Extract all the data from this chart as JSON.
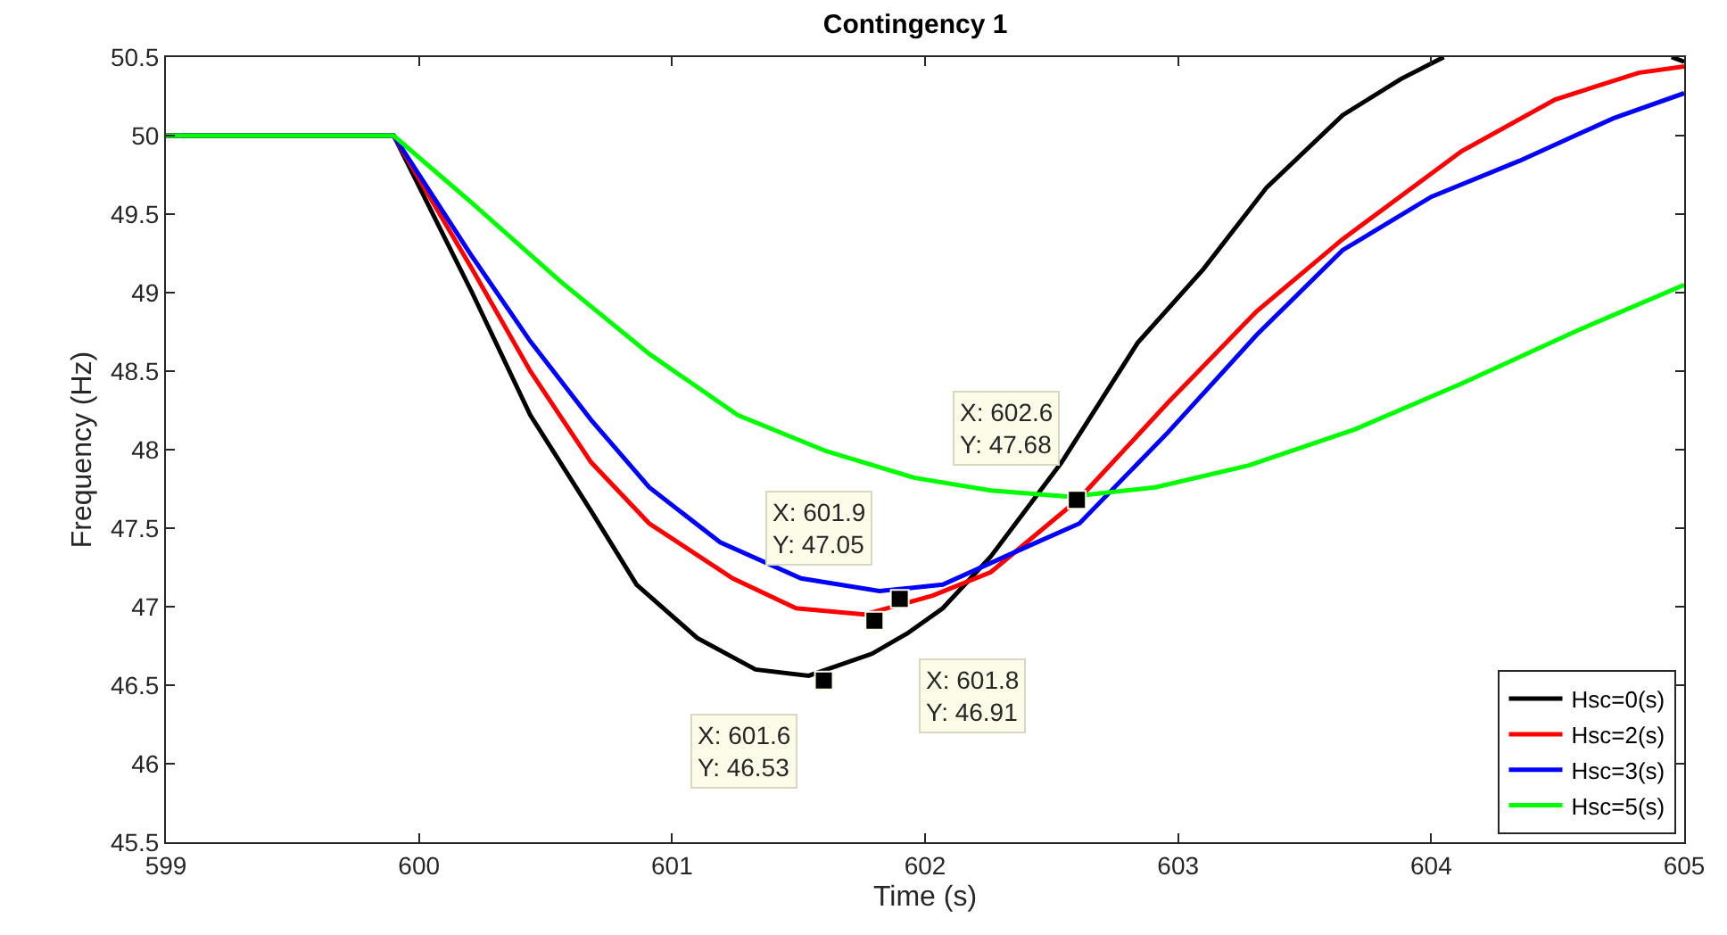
{
  "chart_data": {
    "type": "line",
    "title": "Contingency 1",
    "xlabel": "Time (s)",
    "ylabel": "Frequency (Hz)",
    "xlim": [
      599,
      605
    ],
    "xticks": [
      599,
      600,
      601,
      602,
      603,
      604,
      605
    ],
    "ylim": [
      45.5,
      50.5
    ],
    "yticks": [
      45.5,
      46,
      46.5,
      47,
      47.5,
      48,
      48.5,
      49,
      49.5,
      50,
      50.5
    ],
    "grid": false,
    "legend": "bottom right",
    "marker": "none",
    "line_style": "solid",
    "series": [
      {
        "name": "Hsc=0(s)",
        "color": "#000000",
        "x": [
          599,
          599.9,
          600.21,
          600.44,
          600.68,
          600.86,
          601.1,
          601.33,
          601.54,
          601.79,
          601.93,
          602.07,
          602.26,
          602.54,
          602.84,
          603.1,
          603.35,
          603.65,
          603.88,
          604.05,
          604.5,
          604.95,
          605
        ],
        "values": [
          50,
          50,
          49.0,
          48.22,
          47.61,
          47.14,
          46.8,
          46.6,
          46.56,
          46.7,
          46.83,
          46.99,
          47.32,
          47.92,
          48.68,
          49.15,
          49.67,
          50.13,
          50.36,
          50.5,
          null,
          50.5,
          50.47
        ]
      },
      {
        "name": "Hsc=2(s)",
        "color": "#ff0000",
        "x": [
          599,
          599.9,
          600.21,
          600.44,
          600.68,
          600.91,
          601.24,
          601.49,
          601.76,
          602.03,
          602.26,
          602.61,
          602.96,
          603.31,
          603.65,
          604.12,
          604.49,
          604.82,
          605
        ],
        "values": [
          50,
          50,
          49.15,
          48.5,
          47.92,
          47.53,
          47.18,
          46.99,
          46.95,
          47.07,
          47.22,
          47.69,
          48.3,
          48.88,
          49.34,
          49.9,
          50.23,
          50.4,
          50.44
        ]
      },
      {
        "name": "Hsc=3(s)",
        "color": "#0000ff",
        "x": [
          599,
          599.9,
          600.21,
          600.44,
          600.68,
          600.91,
          601.19,
          601.51,
          601.82,
          602.07,
          602.4,
          602.61,
          602.96,
          603.31,
          603.65,
          604.0,
          604.35,
          604.72,
          605
        ],
        "values": [
          50,
          50,
          49.23,
          48.69,
          48.19,
          47.76,
          47.41,
          47.18,
          47.1,
          47.14,
          47.38,
          47.53,
          48.11,
          48.73,
          49.27,
          49.61,
          49.84,
          50.11,
          50.27
        ]
      },
      {
        "name": "Hsc=5(s)",
        "color": "#00ff00",
        "x": [
          599,
          599.9,
          600.21,
          600.56,
          600.91,
          601.26,
          601.61,
          601.96,
          602.26,
          602.57,
          602.91,
          603.28,
          603.7,
          604.12,
          604.58,
          605
        ],
        "values": [
          50,
          50,
          49.57,
          49.07,
          48.61,
          48.22,
          47.99,
          47.82,
          47.74,
          47.7,
          47.76,
          47.9,
          48.13,
          48.42,
          48.76,
          49.05
        ]
      }
    ],
    "annotations": [
      {
        "text": "X: 601.6\nY: 46.53",
        "x": 601.6,
        "y": 46.53
      },
      {
        "text": "X: 601.9\nY: 47.05",
        "x": 601.9,
        "y": 47.05
      },
      {
        "text": "X: 601.8\nY: 46.91",
        "x": 601.8,
        "y": 46.91
      },
      {
        "text": "X: 602.6\nY: 47.68",
        "x": 602.6,
        "y": 47.68
      }
    ]
  }
}
